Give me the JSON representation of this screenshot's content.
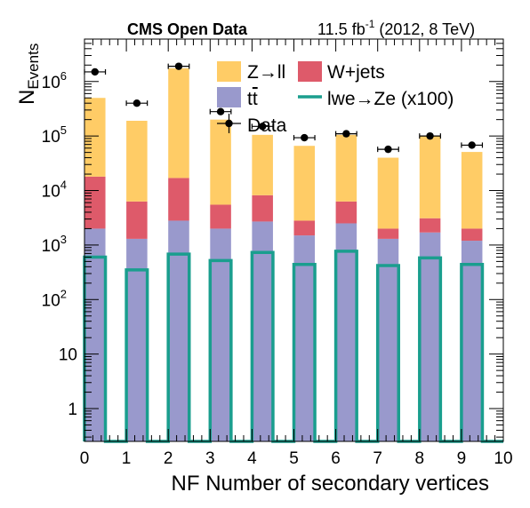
{
  "chart_data": {
    "type": "bar",
    "stacked": true,
    "log_y": true,
    "header_left": "CMS Open Data",
    "header_right_lumi": "11.5 fb",
    "header_right_exp": "-1",
    "header_right_rest": " (2012, 8 TeV)",
    "xlabel": "NF Number of secondary vertices",
    "ylabel_main": "N",
    "ylabel_sub": "Events",
    "xlim": [
      0,
      10
    ],
    "ylim": [
      0.25,
      6000000
    ],
    "x_ticks": [
      "0",
      "1",
      "2",
      "3",
      "4",
      "5",
      "6",
      "7",
      "8",
      "9",
      "10"
    ],
    "y_ticks": [
      {
        "value": 1,
        "label": "1"
      },
      {
        "value": 10,
        "label": "10"
      },
      {
        "value": 100,
        "label": "10",
        "exp": "2"
      },
      {
        "value": 1000,
        "label": "10",
        "exp": "3"
      },
      {
        "value": 10000,
        "label": "10",
        "exp": "4"
      },
      {
        "value": 100000,
        "label": "10",
        "exp": "5"
      },
      {
        "value": 1000000,
        "label": "10",
        "exp": "6"
      }
    ],
    "bins": [
      {
        "lo": 0,
        "hi": 0.5
      },
      {
        "lo": 1,
        "hi": 1.5
      },
      {
        "lo": 2,
        "hi": 2.5
      },
      {
        "lo": 3,
        "hi": 3.5
      },
      {
        "lo": 4,
        "hi": 4.5
      },
      {
        "lo": 5,
        "hi": 5.5
      },
      {
        "lo": 6,
        "hi": 6.5
      },
      {
        "lo": 7,
        "hi": 7.5
      },
      {
        "lo": 8,
        "hi": 8.5
      },
      {
        "lo": 9,
        "hi": 9.5
      }
    ],
    "stack": [
      {
        "name": "tt̅",
        "color": "#9999cc",
        "values": [
          2000,
          1300,
          2800,
          2000,
          2700,
          1500,
          2500,
          1300,
          1700,
          1200
        ]
      },
      {
        "name": "W+jets",
        "color": "#de5a6a",
        "values": [
          16000,
          5000,
          14200,
          3500,
          5500,
          1300,
          3800,
          700,
          1400,
          800
        ]
      },
      {
        "name": "Z→ll",
        "color": "#ffcc66",
        "values": [
          482000,
          184000,
          1733000,
          194500,
          96800,
          63200,
          98700,
          38000,
          96900,
          49000
        ]
      }
    ],
    "signal": {
      "name": "lwe→Ze (x100)",
      "color": "#1a9e8e",
      "values": [
        600,
        350,
        680,
        520,
        730,
        440,
        770,
        420,
        580,
        440
      ],
      "baseline": 0.25
    },
    "data": {
      "name": "Data",
      "x": [
        0.25,
        1.25,
        2.25,
        3.25,
        4.25,
        5.25,
        6.25,
        7.25,
        8.25,
        9.25
      ],
      "y": [
        1500000,
        400000,
        1900000,
        280000,
        150000,
        93000,
        110000,
        57000,
        100000,
        68000
      ],
      "xerr": 0.25
    },
    "legend": [
      {
        "label": "Z→ll",
        "kind": "box",
        "color": "#ffcc66"
      },
      {
        "label": "W+jets",
        "kind": "box",
        "color": "#de5a6a"
      },
      {
        "label": "t",
        "label_bar": "t",
        "kind": "box",
        "color": "#9999cc"
      },
      {
        "label": "lwe→Ze (x100)",
        "kind": "line",
        "color": "#1a9e8e"
      },
      {
        "label": "Data",
        "kind": "marker",
        "color": "#000000"
      }
    ],
    "legend_position": "top-right",
    "grid": false
  }
}
